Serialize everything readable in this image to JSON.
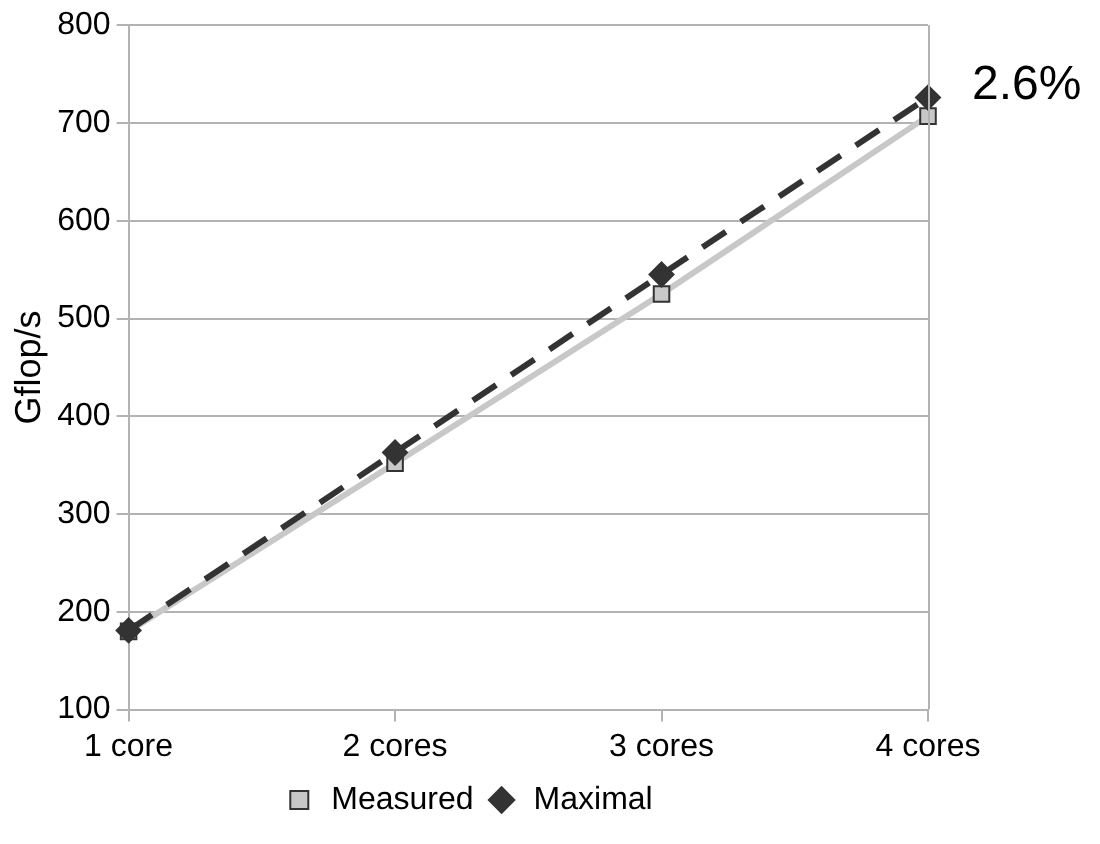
{
  "chart_data": {
    "type": "line",
    "ylabel": "Gflop/s",
    "categories": [
      "1 core",
      "2 cores",
      "3 cores",
      "4 cores"
    ],
    "series": [
      {
        "name": "Measured",
        "color": "#c8c8c8",
        "values": [
          180,
          352,
          525,
          707
        ],
        "marker": "square",
        "line_style": "solid"
      },
      {
        "name": "Maximal",
        "color": "#333333",
        "values": [
          181,
          363,
          545,
          726
        ],
        "marker": "diamond",
        "line_style": "dashed"
      }
    ],
    "ylim": [
      100,
      800
    ],
    "yticks": [
      100,
      200,
      300,
      400,
      500,
      600,
      700,
      800
    ],
    "grid": "y",
    "legend": "bottom",
    "annotations": [
      {
        "text": "2.6%",
        "x": "4 cores",
        "y": 726
      }
    ]
  }
}
